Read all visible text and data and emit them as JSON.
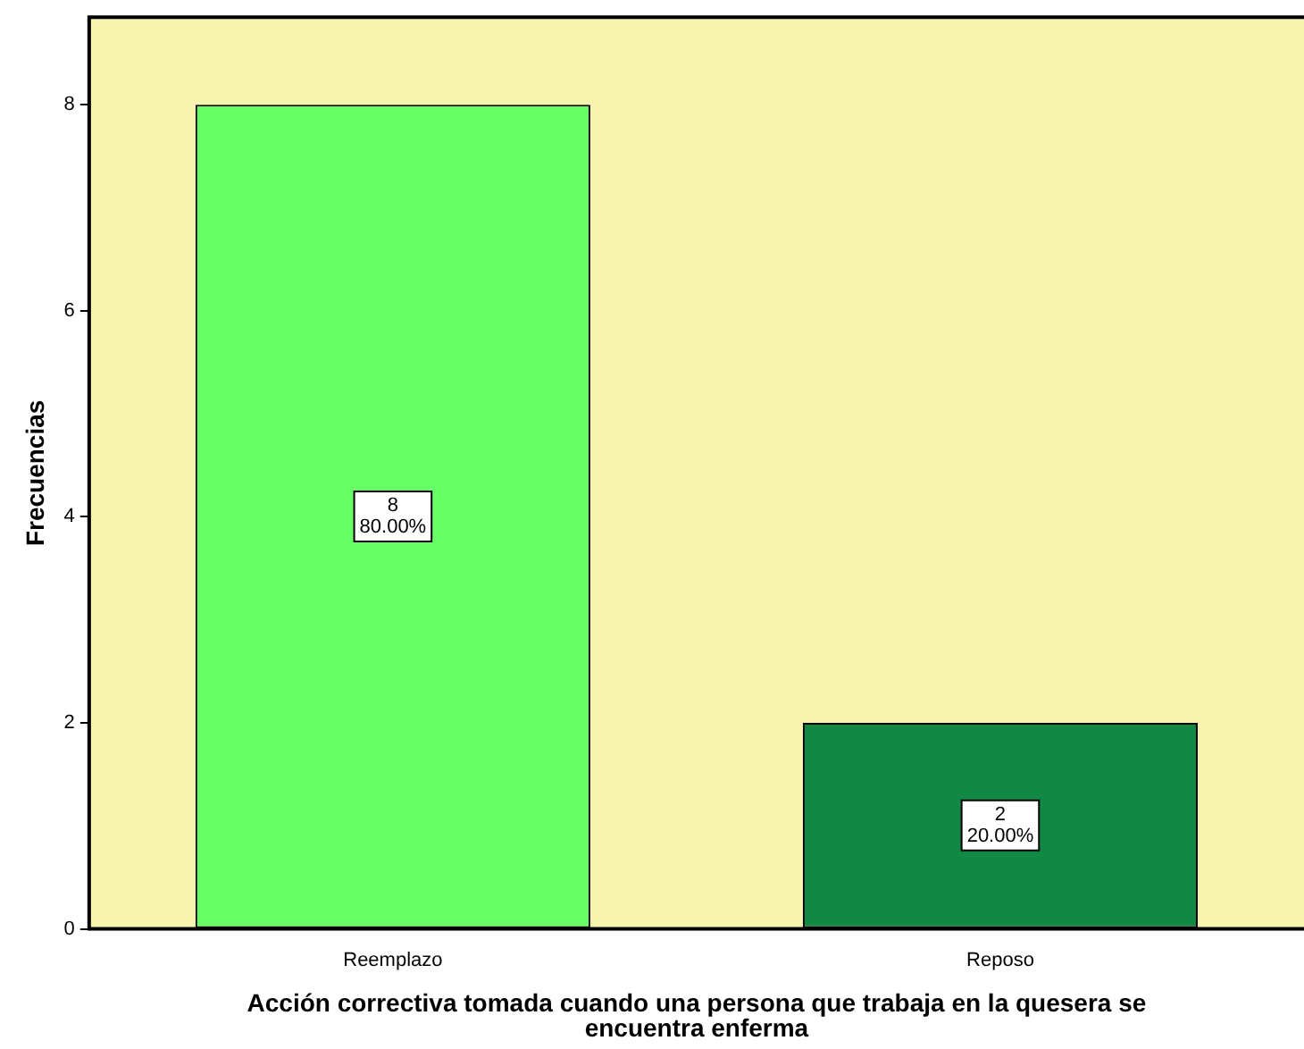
{
  "chart_data": {
    "type": "bar",
    "xlabel": "Acción correctiva tomada cuando una persona que trabaja en la quesera se encuentra enferma",
    "ylabel": "Frecuencias",
    "categories": [
      "Reemplazo",
      "Reposo"
    ],
    "values": [
      8,
      2
    ],
    "colors": [
      "#66ff66",
      "#118844"
    ],
    "value_labels": [
      "8\n80.00%",
      "2\n20.00%"
    ],
    "ylim": [
      0,
      8.85
    ],
    "yticks": [
      0,
      2,
      4,
      6,
      8
    ]
  }
}
